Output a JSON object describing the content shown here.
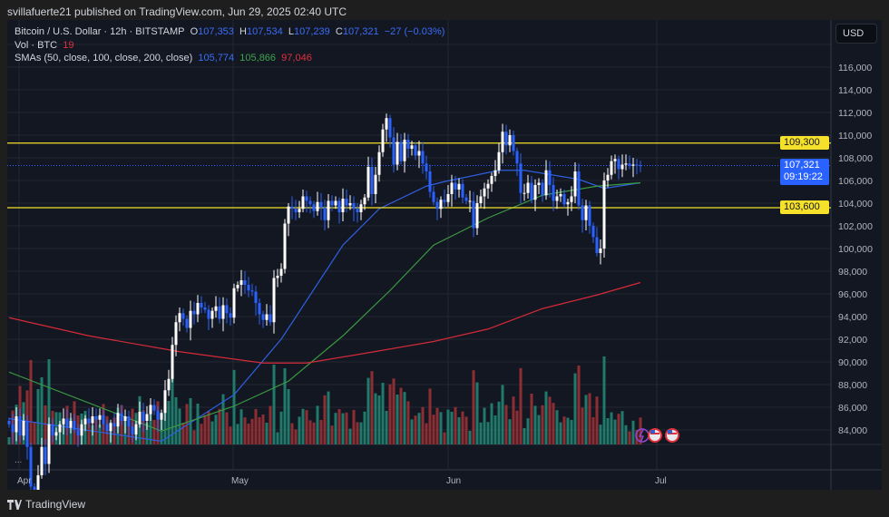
{
  "publisher_line": "svillafuerte21 published on TradingView.com, Jun 29, 2025 02:40 UTC",
  "legend": {
    "symbol": "Bitcoin / U.S. Dollar · 12h · BITSTAMP",
    "o_label": "O",
    "o": "107,353",
    "h_label": "H",
    "h": "107,534",
    "l_label": "L",
    "l": "107,239",
    "c_label": "C",
    "c": "107,321",
    "change": "−27 (−0.03%)",
    "vol_label": "Vol · BTC",
    "vol": "19",
    "sma_label": "SMAs (50, close, 100, close, 200, close)",
    "sma50": "105,774",
    "sma100": "105,866",
    "sma200": "97,046"
  },
  "currency_button": "USD",
  "price_axis": {
    "ticks": [
      "84,000",
      "86,000",
      "88,000",
      "90,000",
      "92,000",
      "94,000",
      "96,000",
      "98,000",
      "100,000",
      "102,000",
      "104,000",
      "106,000",
      "108,000",
      "110,000",
      "112,000",
      "114,000",
      "116,000"
    ]
  },
  "levels": [
    {
      "value": 109300,
      "label": "109,300"
    },
    {
      "value": 103600,
      "label": "103,600"
    }
  ],
  "current": {
    "value": 107321,
    "label": "107,321",
    "countdown": "09:19:22"
  },
  "time_axis": [
    "Apr",
    "May",
    "Jun",
    "Jul"
  ],
  "more_label": "...",
  "brand": "TradingView",
  "colors": {
    "up": "#ffffff",
    "down": "#2962ff",
    "level": "#f5e12a",
    "sma50": "#2f5fe0",
    "sma100": "#3a9a42",
    "sma200": "#d52a38",
    "vol_up": "#1f7a6c",
    "vol_down": "#8e2d33",
    "current": "#2962ff"
  },
  "chart_data": {
    "type": "candlestick",
    "interval": "12h",
    "ylim": [
      82000,
      118000
    ],
    "closes_k": [
      84.5,
      83.8,
      85.2,
      83.5,
      84.8,
      82.5,
      79,
      78.5,
      80,
      82.5,
      81,
      84.5,
      83.5,
      83.8,
      84.5,
      85,
      84.2,
      84.8,
      84,
      83.5,
      84.5,
      85,
      84.6,
      85.2,
      84.9,
      85.3,
      84.5,
      83.9,
      84.6,
      84.3,
      85.5,
      84.8,
      85.2,
      84.3,
      83.6,
      84.5,
      85.6,
      84.8,
      85.4,
      86.2,
      85.7,
      84.9,
      85.5,
      87.5,
      88.5,
      91.5,
      93.5,
      94.3,
      93.8,
      93,
      94.5,
      94.2,
      95.2,
      94.8,
      94.6,
      93.8,
      94.5,
      94.9,
      93.8,
      95,
      94.3,
      93.9,
      96.5,
      96.8,
      97.2,
      96.8,
      96.3,
      96.2,
      95.2,
      94.2,
      93.7,
      94.2,
      93.5,
      97.4,
      97.6,
      98.2,
      102.2,
      103.7,
      103.5,
      103.2,
      103.5,
      104.6,
      104.2,
      103.9,
      103.3,
      104.1,
      103.6,
      102.5,
      104.2,
      103.8,
      104.2,
      103.2,
      104.4,
      103.8,
      104,
      103.5,
      103.2,
      103.9,
      104.5,
      107.2,
      104.8,
      106.5,
      108.5,
      110.5,
      111.5,
      109.8,
      107.4,
      109.4,
      107.7,
      109.6,
      108.8,
      109.1,
      108.2,
      108.6,
      107.5,
      106.8,
      105,
      104.1,
      103.5,
      104.3,
      104.1,
      104.8,
      105.8,
      105.2,
      105.7,
      104.5,
      104.2,
      104.2,
      101.8,
      104,
      104.6,
      105.3,
      105.7,
      106.4,
      106.9,
      108.5,
      110.3,
      109.1,
      110,
      108.6,
      107.5,
      104.9,
      104.9,
      105.8,
      104.3,
      105.6,
      105.8,
      104.7,
      106.9,
      105.6,
      104.2,
      104.6,
      104.8,
      103.9,
      104.1,
      104.6,
      106.8,
      103.8,
      102.5,
      103.8,
      102,
      101,
      99.6,
      100,
      106,
      106.5,
      107.7,
      107.9,
      107,
      107.4,
      107.5,
      107.3,
      107.4,
      107.35,
      107.32
    ],
    "sma_series": [
      {
        "name": "SMA 50",
        "points": [
          [
            0,
            85
          ],
          [
            42,
            83
          ],
          [
            62,
            87.1
          ],
          [
            75,
            92
          ],
          [
            92,
            100.3
          ],
          [
            102,
            103.5
          ],
          [
            115,
            105.5
          ],
          [
            120,
            105.9
          ],
          [
            135,
            106.9
          ],
          [
            142,
            106.9
          ],
          [
            157,
            106.1
          ],
          [
            164,
            105.3
          ],
          [
            174,
            105.8
          ]
        ]
      },
      {
        "name": "SMA 100",
        "points": [
          [
            0,
            89.1
          ],
          [
            42,
            83.9
          ],
          [
            62,
            86.1
          ],
          [
            77,
            88.3
          ],
          [
            92,
            92.3
          ],
          [
            105,
            96.3
          ],
          [
            117,
            100.3
          ],
          [
            132,
            102.7
          ],
          [
            147,
            104.7
          ],
          [
            162,
            105.5
          ],
          [
            174,
            105.8
          ]
        ]
      },
      {
        "name": "SMA 200",
        "points": [
          [
            0,
            93.9
          ],
          [
            22,
            92.3
          ],
          [
            47,
            90.9
          ],
          [
            70,
            89.9
          ],
          [
            82,
            89.9
          ],
          [
            97,
            90.7
          ],
          [
            117,
            91.8
          ],
          [
            132,
            92.9
          ],
          [
            147,
            94.7
          ],
          [
            162,
            95.9
          ],
          [
            174,
            97.0
          ]
        ]
      }
    ]
  }
}
